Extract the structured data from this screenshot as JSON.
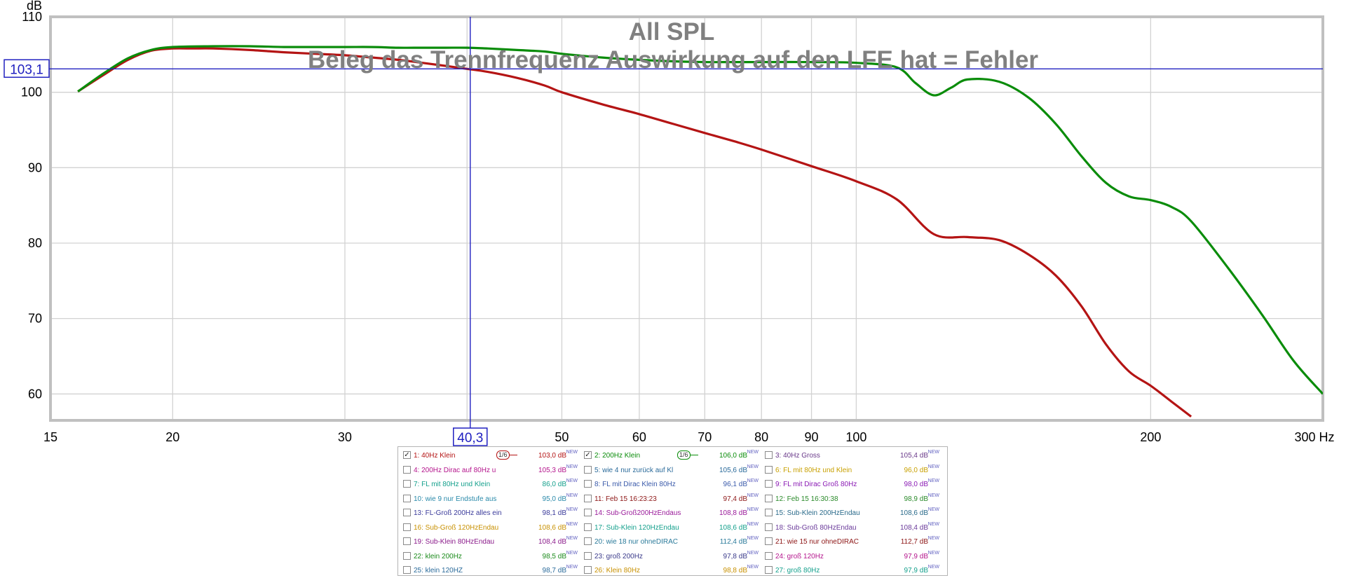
{
  "chart_data": {
    "type": "line",
    "title": "All SPL",
    "subtitle": "Beleg das Trennfrequenz Auswirkung auf den LFE hat = Fehler",
    "ylabel": "dB",
    "xunit": "Hz",
    "xscale": "log",
    "xlim": [
      15,
      300
    ],
    "ylim": [
      56.5,
      110
    ],
    "x_ticks": [
      15,
      20,
      30,
      40,
      50,
      60,
      70,
      80,
      90,
      100,
      200,
      300
    ],
    "x_tick_labels": [
      "15",
      "20",
      "30",
      "",
      "50",
      "60",
      "70",
      "80",
      "90",
      "100",
      "200",
      "300 Hz"
    ],
    "y_ticks": [
      60,
      70,
      80,
      90,
      100,
      110
    ],
    "y_tick_labels": [
      "60",
      "70",
      "80",
      "90",
      "100",
      "110"
    ],
    "grid": true,
    "cursor": {
      "x": 40.3,
      "y": 103.1,
      "x_label": "40,3",
      "y_label": "103,1"
    },
    "series": [
      {
        "name": "1: 40Hz Klein",
        "color": "#b41414",
        "x": [
          16,
          17,
          18,
          19,
          20,
          21,
          22,
          24,
          26,
          28,
          30,
          32,
          34,
          36,
          38,
          40,
          42,
          45,
          48,
          50,
          55,
          60,
          65,
          70,
          75,
          80,
          90,
          100,
          110,
          120,
          130,
          140,
          150,
          160,
          170,
          180,
          190,
          200,
          210,
          220
        ],
        "y": [
          100.1,
          102.3,
          104.3,
          105.5,
          105.8,
          105.8,
          105.8,
          105.6,
          105.3,
          105.1,
          104.9,
          104.6,
          104.3,
          103.9,
          103.5,
          103.1,
          102.7,
          101.9,
          100.9,
          100.0,
          98.4,
          97.1,
          95.8,
          94.6,
          93.5,
          92.4,
          90.2,
          88.2,
          85.8,
          81.2,
          80.8,
          80.4,
          78.5,
          75.7,
          71.6,
          66.6,
          63.0,
          61.1,
          59.0,
          57.0
        ]
      },
      {
        "name": "2: 200Hz Klein",
        "color": "#0a8c0a",
        "x": [
          16,
          17,
          18,
          19,
          20,
          22,
          24,
          26,
          28,
          30,
          32,
          34,
          36,
          38,
          40,
          42,
          45,
          48,
          50,
          55,
          60,
          65,
          70,
          75,
          80,
          90,
          100,
          110,
          115,
          120,
          125,
          130,
          140,
          150,
          160,
          170,
          180,
          190,
          200,
          210,
          220,
          240,
          260,
          280,
          300
        ],
        "y": [
          100.1,
          102.5,
          104.5,
          105.6,
          106.0,
          106.1,
          106.1,
          106.0,
          106.0,
          106.0,
          106.0,
          105.9,
          105.9,
          105.9,
          105.9,
          105.8,
          105.6,
          105.4,
          105.1,
          104.6,
          104.3,
          104.1,
          104.0,
          104.0,
          104.0,
          104.0,
          103.9,
          103.3,
          101.2,
          99.6,
          100.6,
          101.7,
          101.4,
          99.3,
          95.8,
          91.5,
          88.0,
          86.2,
          85.7,
          84.8,
          82.9,
          76.7,
          70.5,
          64.4,
          60.0
        ]
      }
    ]
  },
  "legend": {
    "smooth_label": "1/6",
    "new_badge": "NEW",
    "rows": [
      [
        {
          "label": "1: 40Hz Klein",
          "value": "103,0 dB",
          "color": "#b41414",
          "checked": true,
          "smooth": true
        },
        {
          "label": "2: 200Hz Klein",
          "value": "106,0 dB",
          "color": "#0a8c0a",
          "checked": true,
          "smooth": true
        },
        {
          "label": "3: 40Hz Gross",
          "value": "105,4 dB",
          "color": "#6a3a8a",
          "checked": false
        }
      ],
      [
        {
          "label": "4: 200Hz Dirac auf 80Hz u",
          "value": "105,3 dB",
          "color": "#b4148c",
          "checked": false
        },
        {
          "label": "5: wie 4 nur zurück auf Kl",
          "value": "105,6 dB",
          "color": "#2a6a9a",
          "checked": false
        },
        {
          "label": "6: FL mit 80Hz und Klein",
          "value": "96,0 dB",
          "color": "#c8a000",
          "checked": false
        }
      ],
      [
        {
          "label": "7: FL mit 80Hz und Klein",
          "value": "86,0 dB",
          "color": "#14a08c",
          "checked": false
        },
        {
          "label": "8: FL mit Dirac Klein 80Hz",
          "value": "96,1 dB",
          "color": "#3a5aaa",
          "checked": false
        },
        {
          "label": "9: FL mit Dirac Groß 80Hz",
          "value": "98,0 dB",
          "color": "#8a1ab4",
          "checked": false
        }
      ],
      [
        {
          "label": "10: wie 9 nur Endstufe aus",
          "value": "95,0 dB",
          "color": "#2a8aaa",
          "checked": false
        },
        {
          "label": "11: Feb 15 16:23:23",
          "value": "97,4 dB",
          "color": "#8c1414",
          "checked": false
        },
        {
          "label": "12: Feb 15 16:30:38",
          "value": "98,9 dB",
          "color": "#2a8a2a",
          "checked": false
        }
      ],
      [
        {
          "label": "13: FL-Groß 200Hz alles ein",
          "value": "98,1 dB",
          "color": "#3a3a9a",
          "checked": false
        },
        {
          "label": "14: Sub-Groß200HzEndaus",
          "value": "108,8 dB",
          "color": "#9a1a9a",
          "checked": false
        },
        {
          "label": "15: Sub-Klein 200HzEndau",
          "value": "108,6 dB",
          "color": "#2a6a8a",
          "checked": false
        }
      ],
      [
        {
          "label": "16: Sub-Groß 120HzEndau",
          "value": "108,6 dB",
          "color": "#c89000",
          "checked": false
        },
        {
          "label": "17: Sub-Klein 120HzEndau",
          "value": "108,6 dB",
          "color": "#14a08c",
          "checked": false
        },
        {
          "label": "18: Sub-Groß 80HzEndau",
          "value": "108,4 dB",
          "color": "#6a3a9a",
          "checked": false
        }
      ],
      [
        {
          "label": "19: Sub-Klein 80HzEndau",
          "value": "108,4 dB",
          "color": "#8a1a8a",
          "checked": false
        },
        {
          "label": "20: wie 18 nur ohneDIRAC",
          "value": "112,4 dB",
          "color": "#2a7a9a",
          "checked": false
        },
        {
          "label": "21: wie 15 nur ohneDIRAC",
          "value": "112,7 dB",
          "color": "#8c1414",
          "checked": false
        }
      ],
      [
        {
          "label": "22: klein 200Hz",
          "value": "98,5 dB",
          "color": "#1a8a1a",
          "checked": false
        },
        {
          "label": "23: groß 200Hz",
          "value": "97,8 dB",
          "color": "#3a3a8a",
          "checked": false
        },
        {
          "label": "24: groß 120Hz",
          "value": "97,9 dB",
          "color": "#b4148c",
          "checked": false
        }
      ],
      [
        {
          "label": "25: klein 120HZ",
          "value": "98,7 dB",
          "color": "#2a6a9a",
          "checked": false
        },
        {
          "label": "26: Klein 80Hz",
          "value": "98,8 dB",
          "color": "#c89000",
          "checked": false
        },
        {
          "label": "27: groß 80Hz",
          "value": "97,9 dB",
          "color": "#14a08c",
          "checked": false
        }
      ]
    ]
  }
}
